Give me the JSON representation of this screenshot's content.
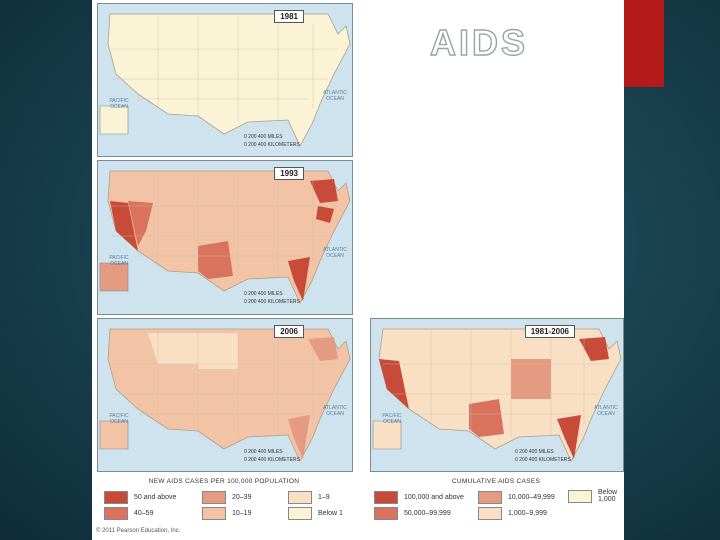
{
  "slide": {
    "title": "AIDS"
  },
  "maps": [
    {
      "year": "1981"
    },
    {
      "year": "1993"
    },
    {
      "year": "2006"
    },
    {
      "year": "1981-2006"
    }
  ],
  "map_labels": {
    "pacific": "PACIFIC OCEAN",
    "atlantic": "ATLANTIC OCEAN",
    "scale_miles": "0   200   400 MILES",
    "scale_km": "0   200 400 KILOMETERS"
  },
  "legend_rate": {
    "title": "NEW AIDS CASES PER 100,000 POPULATION",
    "items": [
      {
        "label": "50 and above",
        "color": "#c84a38"
      },
      {
        "label": "20–39",
        "color": "#e59a82"
      },
      {
        "label": "1–9",
        "color": "#f9dfc4"
      },
      {
        "label": "40–59",
        "color": "#d9735e"
      },
      {
        "label": "10–19",
        "color": "#f3c3a6"
      },
      {
        "label": "Below 1",
        "color": "#fbf3d6"
      }
    ]
  },
  "legend_cumulative": {
    "title": "CUMULATIVE AIDS CASES",
    "items": [
      {
        "label": "100,000 and above",
        "color": "#c84a38"
      },
      {
        "label": "10,000–49,999",
        "color": "#e59a82"
      },
      {
        "label": "Below 1,000",
        "color": "#fbf3d6"
      },
      {
        "label": "50,000–99,999",
        "color": "#d9735e"
      },
      {
        "label": "1,000–9,999",
        "color": "#f9dfc4"
      }
    ]
  },
  "copyright": "© 2011 Pearson Education, Inc."
}
